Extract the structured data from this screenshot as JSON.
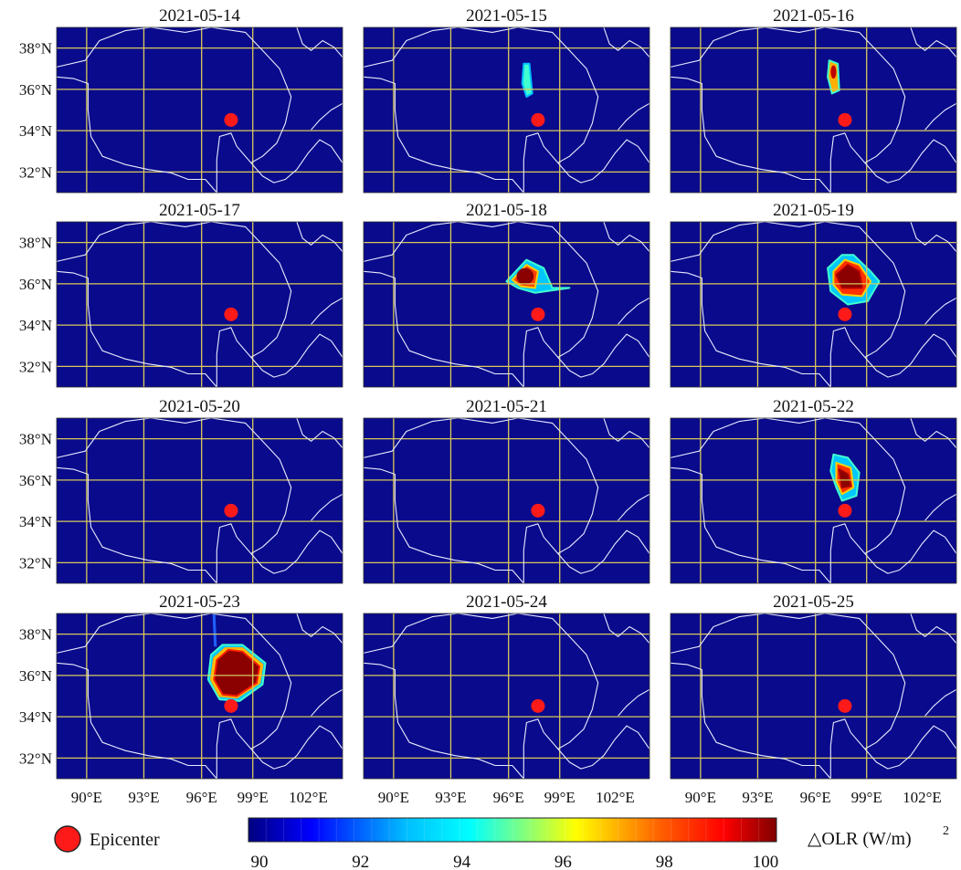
{
  "panels": [
    {
      "date": "2021-05-14"
    },
    {
      "date": "2021-05-15"
    },
    {
      "date": "2021-05-16"
    },
    {
      "date": "2021-05-17"
    },
    {
      "date": "2021-05-18"
    },
    {
      "date": "2021-05-19"
    },
    {
      "date": "2021-05-20"
    },
    {
      "date": "2021-05-21"
    },
    {
      "date": "2021-05-22"
    },
    {
      "date": "2021-05-23"
    },
    {
      "date": "2021-05-24"
    },
    {
      "date": "2021-05-25"
    }
  ],
  "lat_labels": [
    "38°N",
    "36°N",
    "34°N",
    "32°N"
  ],
  "lon_labels": [
    "90°E",
    "93°E",
    "96°E",
    "99°E",
    "102°E"
  ],
  "legend": {
    "epicenter_label": "Epicenter",
    "colorbar_title": "△OLR (W/m)",
    "colorbar_title_sup": "2",
    "colorbar_ticks": [
      "90",
      "92",
      "94",
      "96",
      "98",
      "100"
    ]
  },
  "colors": {
    "background_field": "#0a0a8c",
    "gridline": "#d8c95a",
    "boundary": "#e8ecff",
    "epicenter": "#ff1a1a"
  }
}
